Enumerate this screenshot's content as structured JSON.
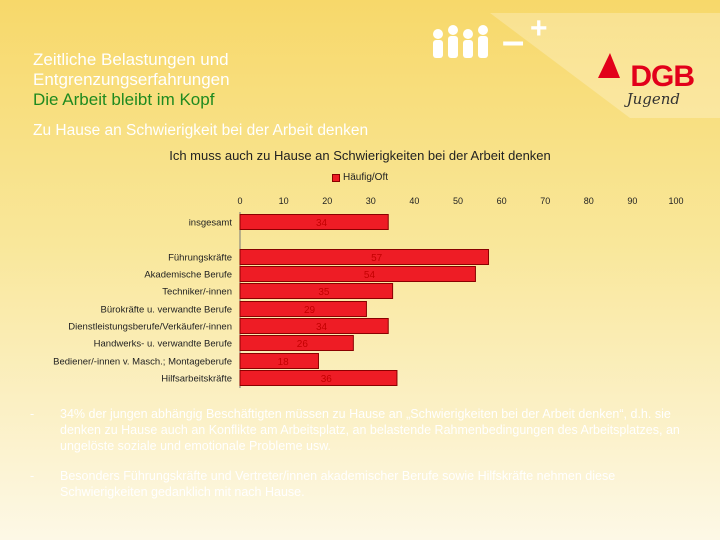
{
  "slide": {
    "title_line1": "Zeitliche Belastungen und",
    "title_line2": "Entgrenzungserfahrungen",
    "title_line3": "Die Arbeit bleibt im Kopf",
    "subtitle": "Zu Hause an Schwierigkeit bei der Arbeit denken",
    "logo_text": "DGB",
    "logo_sub": "Jugend",
    "logo_minus": "–",
    "logo_plus": "+"
  },
  "colors": {
    "bar": "#ee1c25",
    "bar_stroke": "#8a0000",
    "title_green": "#1f8a1f",
    "logo_red": "#e2001a"
  },
  "chart_data": {
    "type": "bar",
    "orientation": "horizontal",
    "title": "Ich muss auch zu Hause an Schwierigkeiten bei der Arbeit denken",
    "legend": [
      "Häufig/Oft"
    ],
    "xlim": [
      0,
      100
    ],
    "xticks": [
      0,
      10,
      20,
      30,
      40,
      50,
      60,
      70,
      80,
      90,
      100
    ],
    "categories": [
      "insgesamt",
      "Führungskräfte",
      "Akademische Berufe",
      "Techniker/-innen",
      "Bürokräfte u. verwandte Berufe",
      "Dienstleistungsberufe/Verkäufer/-innen",
      "Handwerks- u. verwandte Berufe",
      "Bediener/-innen v. Masch.; Montageberufe",
      "Hilfsarbeitskräfte"
    ],
    "series": [
      {
        "name": "Häufig/Oft",
        "values": [
          34,
          57,
          54,
          35,
          29,
          34,
          26,
          18,
          36
        ]
      }
    ]
  },
  "bullets": [
    {
      "dash": "-",
      "text": "34% der jungen abhängig Beschäftigten müssen zu Hause an „Schwierigkeiten bei der Arbeit denken“, d.h. sie denken zu Hause auch an Konflikte am Arbeitsplatz, an belastende Rahmenbedingungen des Arbeitsplatzes, an ungelöste soziale und emotionale Probleme usw."
    },
    {
      "dash": "-",
      "text": "Besonders Führungskräfte und Vertreter/innen akademischer Berufe sowie Hilfskräfte nehmen diese Schwierigkeiten gedanklich mit nach Hause."
    }
  ]
}
